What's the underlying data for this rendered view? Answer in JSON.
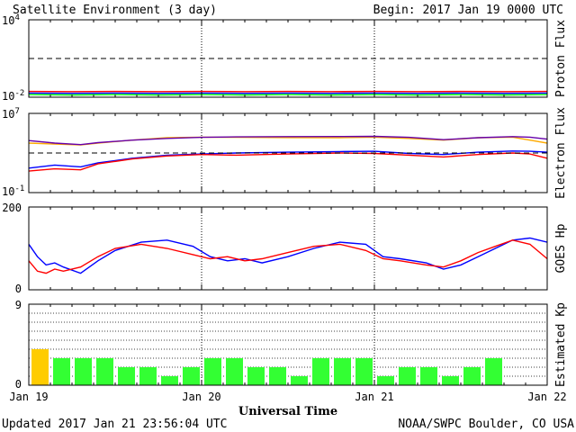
{
  "header": {
    "title": "Satellite Environment (3 day)",
    "begin": "Begin:  2017 Jan 19 0000 UTC"
  },
  "footer": {
    "updated": "Updated 2017 Jan 21 23:56:04 UTC",
    "credit": "NOAA/SWPC Boulder, CO USA",
    "xlabel": "Universal Time"
  },
  "xaxis": {
    "range_days": [
      0,
      3
    ],
    "tick_labels": [
      "Jan 19",
      "Jan 20",
      "Jan 21",
      "Jan 22"
    ],
    "day_dividers": [
      1,
      2
    ]
  },
  "chart_data": [
    {
      "type": "line",
      "ylabel": "Proton Flux",
      "yscale": "log",
      "ylim": [
        0.01,
        10000
      ],
      "yticks": [
        {
          "value": 10000,
          "base": "10",
          "exp": "4"
        },
        {
          "value": 0.01,
          "base": "10",
          "exp": "-2"
        }
      ],
      "threshold": 10,
      "series": [
        {
          "color": "#ff0000",
          "x": [
            0,
            0.25,
            0.5,
            0.75,
            1,
            1.25,
            1.5,
            1.75,
            2,
            2.25,
            2.5,
            2.75,
            3
          ],
          "values": [
            0.028,
            0.027,
            0.028,
            0.027,
            0.028,
            0.027,
            0.028,
            0.027,
            0.028,
            0.027,
            0.028,
            0.027,
            0.028
          ]
        },
        {
          "color": "#0000ff",
          "x": [
            0,
            0.25,
            0.5,
            0.75,
            1,
            1.25,
            1.5,
            1.75,
            2,
            2.25,
            2.5,
            2.75,
            3
          ],
          "values": [
            0.021,
            0.02,
            0.021,
            0.02,
            0.021,
            0.02,
            0.021,
            0.02,
            0.021,
            0.02,
            0.021,
            0.02,
            0.021
          ]
        },
        {
          "color": "#00ff00",
          "x": [
            0,
            0.25,
            0.5,
            0.75,
            1,
            1.25,
            1.5,
            1.75,
            2,
            2.25,
            2.5,
            2.75,
            3
          ],
          "values": [
            0.016,
            0.015,
            0.016,
            0.015,
            0.016,
            0.015,
            0.016,
            0.015,
            0.016,
            0.015,
            0.016,
            0.015,
            0.016
          ]
        }
      ]
    },
    {
      "type": "line",
      "ylabel": "Electron Flux",
      "yscale": "log",
      "ylim": [
        0.1,
        10000000
      ],
      "yticks": [
        {
          "value": 10000000,
          "base": "10",
          "exp": "7"
        },
        {
          "value": 0.1,
          "base": "10",
          "exp": "-1"
        }
      ],
      "threshold": 1000,
      "series": [
        {
          "color": "#ffaa00",
          "x": [
            0,
            0.15,
            0.3,
            0.4,
            0.6,
            0.8,
            1.0,
            1.2,
            1.5,
            1.8,
            2.0,
            2.2,
            2.4,
            2.6,
            2.8,
            2.9,
            3.0
          ],
          "values": [
            10000,
            8000,
            6500,
            10000,
            20000,
            35000,
            40000,
            38000,
            36000,
            35000,
            40000,
            30000,
            20000,
            35000,
            40000,
            20000,
            10000
          ]
        },
        {
          "color": "#6600aa",
          "x": [
            0,
            0.15,
            0.3,
            0.4,
            0.6,
            0.8,
            1.0,
            1.2,
            1.5,
            1.8,
            2.0,
            2.2,
            2.4,
            2.6,
            2.8,
            2.9,
            3.0
          ],
          "values": [
            18000,
            10000,
            7000,
            11000,
            20000,
            30000,
            38000,
            42000,
            45000,
            46000,
            48000,
            38000,
            22000,
            35000,
            45000,
            40000,
            25000
          ]
        },
        {
          "color": "#0000ff",
          "x": [
            0,
            0.15,
            0.3,
            0.4,
            0.6,
            0.8,
            1.0,
            1.2,
            1.5,
            1.8,
            2.0,
            2.2,
            2.4,
            2.6,
            2.8,
            2.9,
            3.0
          ],
          "values": [
            30,
            60,
            40,
            100,
            300,
            600,
            800,
            1000,
            1200,
            1400,
            1500,
            900,
            700,
            1200,
            1600,
            1500,
            1200
          ]
        },
        {
          "color": "#ff0000",
          "x": [
            0,
            0.15,
            0.3,
            0.4,
            0.6,
            0.8,
            1.0,
            1.2,
            1.5,
            1.8,
            2.0,
            2.2,
            2.4,
            2.6,
            2.8,
            2.9,
            3.0
          ],
          "values": [
            15,
            25,
            20,
            80,
            250,
            500,
            700,
            600,
            800,
            1000,
            900,
            600,
            400,
            700,
            1000,
            800,
            300
          ]
        }
      ]
    },
    {
      "type": "line",
      "ylabel": "GOES Hp",
      "yscale": "linear",
      "ylim": [
        0,
        200
      ],
      "yticks": [
        {
          "value": 200,
          "label": "200"
        },
        {
          "value": 0,
          "label": "0"
        }
      ],
      "series": [
        {
          "color": "#0000ff",
          "x": [
            0,
            0.05,
            0.1,
            0.15,
            0.2,
            0.3,
            0.4,
            0.5,
            0.65,
            0.8,
            0.95,
            1.05,
            1.15,
            1.25,
            1.35,
            1.5,
            1.65,
            1.8,
            1.95,
            2.05,
            2.15,
            2.3,
            2.4,
            2.5,
            2.6,
            2.7,
            2.8,
            2.9,
            3.0
          ],
          "values": [
            110,
            80,
            60,
            65,
            55,
            40,
            70,
            95,
            115,
            120,
            105,
            80,
            70,
            75,
            65,
            80,
            100,
            115,
            110,
            80,
            75,
            65,
            50,
            60,
            80,
            100,
            120,
            125,
            115
          ]
        },
        {
          "color": "#ff0000",
          "x": [
            0,
            0.05,
            0.1,
            0.15,
            0.2,
            0.3,
            0.4,
            0.5,
            0.65,
            0.8,
            0.95,
            1.05,
            1.15,
            1.25,
            1.35,
            1.5,
            1.65,
            1.8,
            1.95,
            2.05,
            2.15,
            2.3,
            2.4,
            2.5,
            2.6,
            2.7,
            2.8,
            2.9,
            3.0
          ],
          "values": [
            70,
            45,
            40,
            50,
            45,
            55,
            80,
            100,
            110,
            100,
            85,
            75,
            80,
            70,
            75,
            90,
            105,
            110,
            95,
            75,
            70,
            60,
            55,
            70,
            90,
            105,
            120,
            110,
            75
          ]
        }
      ]
    },
    {
      "type": "bar",
      "ylabel": "Estimated Kp",
      "yscale": "linear",
      "ylim": [
        0,
        9
      ],
      "yticks": [
        {
          "value": 9,
          "label": "9"
        },
        {
          "value": 0,
          "label": "0"
        }
      ],
      "gridlines": [
        1,
        2,
        3,
        4,
        5,
        6,
        7,
        8
      ],
      "bar_width_days": 0.125,
      "values": [
        4,
        3,
        3,
        3,
        2,
        2,
        1,
        2,
        3,
        3,
        2,
        2,
        1,
        3,
        3,
        3,
        1,
        2,
        2,
        1,
        2,
        3
      ],
      "colors": [
        "#ffcc00",
        "#33ff33",
        "#33ff33",
        "#33ff33",
        "#33ff33",
        "#33ff33",
        "#33ff33",
        "#33ff33",
        "#33ff33",
        "#33ff33",
        "#33ff33",
        "#33ff33",
        "#33ff33",
        "#33ff33",
        "#33ff33",
        "#33ff33",
        "#33ff33",
        "#33ff33",
        "#33ff33",
        "#33ff33",
        "#33ff33",
        "#33ff33"
      ]
    }
  ]
}
